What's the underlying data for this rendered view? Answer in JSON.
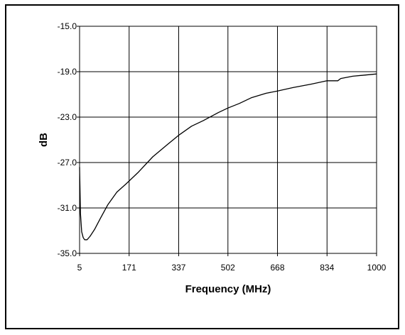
{
  "chart_data": {
    "type": "line",
    "title": "",
    "xlabel": "Frequency (MHz)",
    "ylabel": "dB",
    "xlim": [
      5,
      1000
    ],
    "ylim": [
      -35.0,
      -15.0
    ],
    "x_ticks": [
      5,
      171,
      337,
      502,
      668,
      834,
      1000
    ],
    "x_tick_labels": [
      "5",
      "171",
      "337",
      "502",
      "668",
      "834",
      "1000"
    ],
    "y_ticks": [
      -15.0,
      -19.0,
      -23.0,
      -27.0,
      -31.0,
      -35.0
    ],
    "y_tick_labels": [
      "-15.0",
      "-19.0",
      "-23.0",
      "-27.0",
      "-31.0",
      "-35.0"
    ],
    "grid": true,
    "legend": "none",
    "line_color": "#000000",
    "series": [
      {
        "x": [
          5,
          8,
          12,
          17,
          22,
          30,
          40,
          55,
          75,
          100,
          130,
          160,
          200,
          250,
          300,
          337,
          380,
          420,
          470,
          502,
          540,
          580,
          630,
          668,
          720,
          780,
          834,
          870,
          880,
          920,
          960,
          1000
        ],
        "y": [
          -27.4,
          -31.5,
          -33.1,
          -33.6,
          -33.8,
          -33.8,
          -33.5,
          -32.9,
          -31.9,
          -30.7,
          -29.6,
          -28.9,
          -27.9,
          -26.5,
          -25.4,
          -24.6,
          -23.8,
          -23.3,
          -22.6,
          -22.2,
          -21.8,
          -21.3,
          -20.9,
          -20.7,
          -20.4,
          -20.1,
          -19.8,
          -19.8,
          -19.6,
          -19.4,
          -19.3,
          -19.2
        ]
      }
    ]
  }
}
